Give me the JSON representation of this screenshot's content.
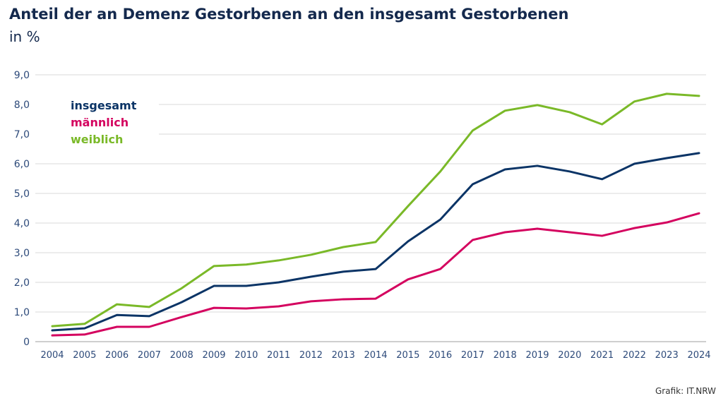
{
  "header": {
    "title": "Anteil der an Demenz Gestorbenen an den insgesamt Gestorbenen",
    "subtitle": "in %"
  },
  "source": "Grafik: IT.NRW",
  "chart_data": {
    "type": "line",
    "title": "Anteil der an Demenz Gestorbenen an den insgesamt Gestorbenen",
    "ylabel": "in %",
    "ylim": [
      0,
      9
    ],
    "yticks": [
      "0",
      "1,0",
      "2,0",
      "3,0",
      "4,0",
      "5,0",
      "6,0",
      "7,0",
      "8,0",
      "9,0"
    ],
    "grid": true,
    "legend_placement": "top-left",
    "x": [
      "2004",
      "2005",
      "2006",
      "2007",
      "2008",
      "2009",
      "2010",
      "2011",
      "2012",
      "2013",
      "2014",
      "2015",
      "2016",
      "2017",
      "2018",
      "2019",
      "2020",
      "2021",
      "2022",
      "2023",
      "2024"
    ],
    "series": [
      {
        "name": "insgesamt",
        "color": "#0b3466",
        "values": [
          0.38,
          0.45,
          0.9,
          0.86,
          1.33,
          1.88,
          1.88,
          2.0,
          2.19,
          2.36,
          2.45,
          3.38,
          4.12,
          5.31,
          5.81,
          5.93,
          5.74,
          5.48,
          6.0,
          6.19,
          6.36
        ]
      },
      {
        "name": "männlich",
        "color": "#d4035f",
        "values": [
          0.21,
          0.24,
          0.5,
          0.5,
          0.83,
          1.14,
          1.12,
          1.19,
          1.36,
          1.43,
          1.45,
          2.1,
          2.45,
          3.43,
          3.69,
          3.81,
          3.69,
          3.57,
          3.83,
          4.02,
          4.33
        ]
      },
      {
        "name": "weiblich",
        "color": "#7ab928",
        "values": [
          0.52,
          0.6,
          1.26,
          1.17,
          1.8,
          2.55,
          2.6,
          2.74,
          2.93,
          3.19,
          3.36,
          4.57,
          5.74,
          7.12,
          7.79,
          7.98,
          7.74,
          7.33,
          8.1,
          8.36,
          8.29
        ]
      }
    ]
  }
}
